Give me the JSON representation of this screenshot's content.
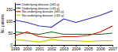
{
  "chart_data": {
    "type": "line",
    "x": [
      1999,
      2000,
      2001,
      2002,
      2003,
      2004,
      2005,
      2006,
      2007
    ],
    "series": [
      {
        "name": "Underlying disease (≥65 y)",
        "color": "#3333bb",
        "values": [
          105,
          95,
          80,
          75,
          110,
          95,
          110,
          125,
          145
        ]
      },
      {
        "name": "Underlying disease (<65 y)",
        "color": "#226622",
        "values": [
          55,
          50,
          45,
          55,
          45,
          45,
          45,
          45,
          50
        ]
      },
      {
        "name": "No underlying disease (≥65 y)",
        "color": "#cc2200",
        "values": [
          40,
          55,
          35,
          30,
          35,
          35,
          40,
          55,
          80
        ]
      },
      {
        "name": "No underlying disease (<65 y)",
        "color": "#cccc00",
        "values": [
          22,
          18,
          12,
          22,
          18,
          18,
          15,
          18,
          18
        ]
      }
    ],
    "xlim": [
      1999,
      2007
    ],
    "xticks": [
      1999,
      2000,
      2001,
      2002,
      2003,
      2004,
      2005,
      2006,
      2007
    ],
    "ylim": [
      0,
      180
    ],
    "yticks": [
      0,
      50,
      100,
      150
    ],
    "y_label": "No. patients",
    "legend": "upper left"
  }
}
